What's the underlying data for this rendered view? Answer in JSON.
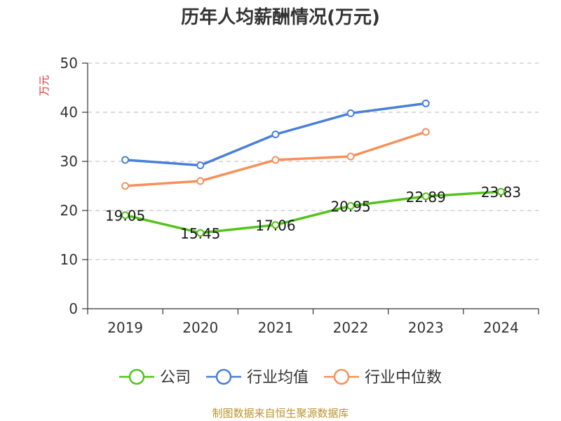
{
  "chart_data": {
    "type": "line",
    "title": "历年人均薪酬情况(万元)",
    "ylabel": "万元",
    "xlabel": "",
    "categories": [
      "2019",
      "2020",
      "2021",
      "2022",
      "2023",
      "2024"
    ],
    "ylim": [
      0,
      50
    ],
    "yticks": [
      "0",
      "10",
      "20",
      "30",
      "40",
      "50"
    ],
    "grid": true,
    "legend_position": "bottom",
    "series": [
      {
        "name": "公司",
        "color": "#52c41a",
        "values": [
          19.05,
          15.45,
          17.06,
          20.95,
          22.89,
          23.83
        ],
        "labels": [
          "19.05",
          "15.45",
          "17.06",
          "20.95",
          "22.89",
          "23.83"
        ]
      },
      {
        "name": "行业均值",
        "color": "#4a7fd8",
        "values": [
          30.3,
          29.2,
          35.5,
          39.8,
          41.8,
          null
        ]
      },
      {
        "name": "行业中位数",
        "color": "#f5905a",
        "values": [
          25.0,
          26.0,
          30.3,
          31.0,
          36.0,
          null
        ]
      }
    ]
  },
  "footer": {
    "source": "制图数据来自恒生聚源数据库"
  }
}
